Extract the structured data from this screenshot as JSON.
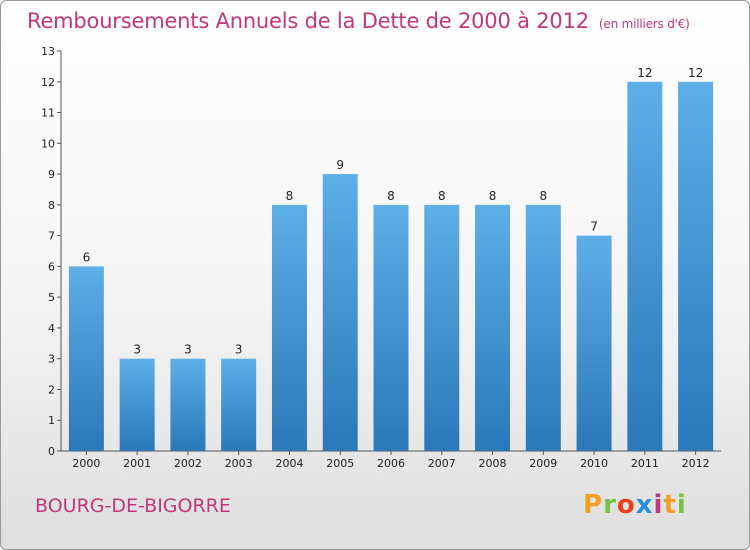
{
  "chart_data": {
    "type": "bar",
    "title": "Remboursements Annuels de la Dette de 2000 à 2012",
    "unit": "(en milliers d'€)",
    "categories": [
      "2000",
      "2001",
      "2002",
      "2003",
      "2004",
      "2005",
      "2006",
      "2007",
      "2008",
      "2009",
      "2010",
      "2011",
      "2012"
    ],
    "values": [
      6,
      3,
      3,
      3,
      8,
      9,
      8,
      8,
      8,
      8,
      7,
      12,
      12
    ],
    "ylim": [
      0,
      13
    ],
    "yticks": [
      0,
      1,
      2,
      3,
      4,
      5,
      6,
      7,
      8,
      9,
      10,
      11,
      12,
      13
    ],
    "grid": false,
    "bar_color_top": "#5eaee8",
    "bar_color_bottom": "#2a78b8",
    "xlabel": "",
    "ylabel": ""
  },
  "footer": {
    "town": "BOURG-DE-BIGORRE",
    "brand": "Proxiti",
    "brand_colors": [
      "#f0a023",
      "#7ac142",
      "#e8401c",
      "#2c8fd6",
      "#c0387a",
      "#f0a023",
      "#7ac142"
    ]
  },
  "colors": {
    "title": "#c0387a",
    "axis": "#555555"
  }
}
